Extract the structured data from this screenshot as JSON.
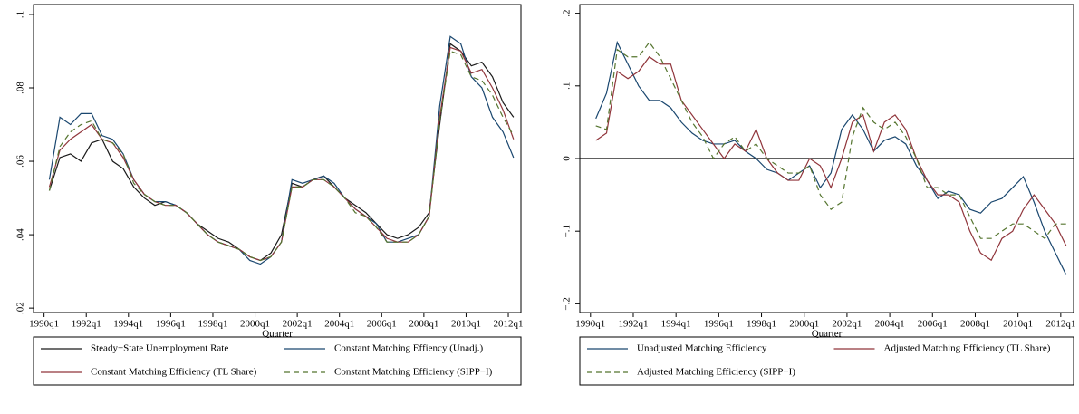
{
  "chart_data": [
    {
      "type": "line",
      "xlabel": "Quarter",
      "x": [
        1990.25,
        1990.75,
        1991.25,
        1991.75,
        1992.25,
        1992.75,
        1993.25,
        1993.75,
        1994.25,
        1994.75,
        1995.25,
        1995.75,
        1996.25,
        1996.75,
        1997.25,
        1997.75,
        1998.25,
        1998.75,
        1999.25,
        1999.75,
        2000.25,
        2000.75,
        2001.25,
        2001.75,
        2002.25,
        2002.75,
        2003.25,
        2003.75,
        2004.25,
        2004.75,
        2005.25,
        2005.75,
        2006.25,
        2006.75,
        2007.25,
        2007.75,
        2008.25,
        2008.75,
        2009.25,
        2009.75,
        2010.25,
        2010.75,
        2011.25,
        2011.75,
        2012.25
      ],
      "xlim": [
        1989.5,
        2012.6
      ],
      "xticks": [
        {
          "value": 1990,
          "label": "1990q1"
        },
        {
          "value": 1992,
          "label": "1992q1"
        },
        {
          "value": 1994,
          "label": "1994q1"
        },
        {
          "value": 1996,
          "label": "1996q1"
        },
        {
          "value": 1998,
          "label": "1998q1"
        },
        {
          "value": 2000,
          "label": "2000q1"
        },
        {
          "value": 2002,
          "label": "2002q1"
        },
        {
          "value": 2004,
          "label": "2004q1"
        },
        {
          "value": 2006,
          "label": "2006q1"
        },
        {
          "value": 2008,
          "label": "2008q1"
        },
        {
          "value": 2010,
          "label": "2010q1"
        },
        {
          "value": 2012,
          "label": "2012q1"
        }
      ],
      "ylim": [
        0.0188,
        0.1027
      ],
      "yticks": [
        {
          "value": 0.02,
          "label": ".02"
        },
        {
          "value": 0.04,
          "label": ".04"
        },
        {
          "value": 0.06,
          "label": ".06"
        },
        {
          "value": 0.08,
          "label": ".08"
        },
        {
          "value": 0.1,
          "label": ".1"
        }
      ],
      "series": [
        {
          "name": "Steady−State Unemployment Rate",
          "color": "#1a1a1a",
          "style": "solid",
          "values": [
            0.052,
            0.061,
            0.062,
            0.06,
            0.065,
            0.066,
            0.06,
            0.058,
            0.053,
            0.05,
            0.048,
            0.049,
            0.048,
            0.046,
            0.043,
            0.041,
            0.039,
            0.038,
            0.036,
            0.034,
            0.033,
            0.035,
            0.04,
            0.054,
            0.053,
            0.055,
            0.056,
            0.053,
            0.05,
            0.048,
            0.046,
            0.043,
            0.04,
            0.039,
            0.04,
            0.042,
            0.046,
            0.07,
            0.092,
            0.09,
            0.086,
            0.087,
            0.083,
            0.076,
            0.072
          ]
        },
        {
          "name": "Constant Matching Effiency (Unadj.)",
          "color": "#1a476f",
          "style": "solid",
          "values": [
            0.055,
            0.072,
            0.07,
            0.073,
            0.073,
            0.067,
            0.066,
            0.062,
            0.055,
            0.051,
            0.049,
            0.049,
            0.048,
            0.046,
            0.043,
            0.04,
            0.038,
            0.037,
            0.036,
            0.033,
            0.032,
            0.034,
            0.038,
            0.055,
            0.054,
            0.055,
            0.056,
            0.054,
            0.05,
            0.047,
            0.045,
            0.043,
            0.038,
            0.038,
            0.039,
            0.04,
            0.045,
            0.075,
            0.094,
            0.092,
            0.083,
            0.08,
            0.072,
            0.068,
            0.061
          ]
        },
        {
          "name": "Constant Matching Efficiency (TL Share)",
          "color": "#90353b",
          "style": "solid",
          "values": [
            0.053,
            0.063,
            0.066,
            0.068,
            0.07,
            0.066,
            0.065,
            0.061,
            0.055,
            0.051,
            0.049,
            0.048,
            0.048,
            0.046,
            0.043,
            0.04,
            0.038,
            0.037,
            0.036,
            0.034,
            0.033,
            0.034,
            0.038,
            0.053,
            0.053,
            0.055,
            0.055,
            0.053,
            0.05,
            0.047,
            0.045,
            0.042,
            0.039,
            0.038,
            0.038,
            0.04,
            0.045,
            0.072,
            0.091,
            0.09,
            0.084,
            0.085,
            0.08,
            0.074,
            0.066
          ]
        },
        {
          "name": "Constant Matching Efficiency (SIPP−I)",
          "color": "#55752f",
          "style": "dashed",
          "values": [
            0.052,
            0.064,
            0.068,
            0.07,
            0.071,
            0.066,
            0.065,
            0.062,
            0.054,
            0.051,
            0.049,
            0.048,
            0.048,
            0.046,
            0.043,
            0.04,
            0.038,
            0.037,
            0.036,
            0.034,
            0.033,
            0.034,
            0.038,
            0.053,
            0.053,
            0.055,
            0.055,
            0.053,
            0.05,
            0.046,
            0.045,
            0.042,
            0.038,
            0.038,
            0.038,
            0.04,
            0.045,
            0.071,
            0.09,
            0.089,
            0.083,
            0.082,
            0.078,
            0.072,
            0.067
          ]
        }
      ]
    },
    {
      "type": "line",
      "xlabel": "Quarter",
      "x": [
        1990.25,
        1990.75,
        1991.25,
        1991.75,
        1992.25,
        1992.75,
        1993.25,
        1993.75,
        1994.25,
        1994.75,
        1995.25,
        1995.75,
        1996.25,
        1996.75,
        1997.25,
        1997.75,
        1998.25,
        1998.75,
        1999.25,
        1999.75,
        2000.25,
        2000.75,
        2001.25,
        2001.75,
        2002.25,
        2002.75,
        2003.25,
        2003.75,
        2004.25,
        2004.75,
        2005.25,
        2005.75,
        2006.25,
        2006.75,
        2007.25,
        2007.75,
        2008.25,
        2008.75,
        2009.25,
        2009.75,
        2010.25,
        2010.75,
        2011.25,
        2011.75,
        2012.25
      ],
      "xlim": [
        1989.5,
        2012.6
      ],
      "xticks": [
        {
          "value": 1990,
          "label": "1990q1"
        },
        {
          "value": 1992,
          "label": "1992q1"
        },
        {
          "value": 1994,
          "label": "1994q1"
        },
        {
          "value": 1996,
          "label": "1996q1"
        },
        {
          "value": 1998,
          "label": "1998q1"
        },
        {
          "value": 2000,
          "label": "2000q1"
        },
        {
          "value": 2002,
          "label": "2002q1"
        },
        {
          "value": 2004,
          "label": "2004q1"
        },
        {
          "value": 2006,
          "label": "2006q1"
        },
        {
          "value": 2008,
          "label": "2008q1"
        },
        {
          "value": 2010,
          "label": "2010q1"
        },
        {
          "value": 2012,
          "label": "2012q1"
        }
      ],
      "ylim": [
        -0.212,
        0.212
      ],
      "yticks": [
        {
          "value": -0.2,
          "label": "−.2"
        },
        {
          "value": -0.1,
          "label": "−.1"
        },
        0,
        {
          "value": 0.1,
          "label": ".1"
        },
        {
          "value": 0.2,
          "label": ".2"
        }
      ],
      "hline": 0,
      "series": [
        {
          "name": "Unadjusted Matching Efficiency",
          "color": "#1a476f",
          "style": "solid",
          "values": [
            0.055,
            0.09,
            0.16,
            0.13,
            0.1,
            0.08,
            0.08,
            0.07,
            0.05,
            0.035,
            0.025,
            0.02,
            0.02,
            0.025,
            0.01,
            0.0,
            -0.015,
            -0.02,
            -0.03,
            -0.02,
            -0.01,
            -0.04,
            -0.02,
            0.04,
            0.06,
            0.04,
            0.01,
            0.025,
            0.03,
            0.02,
            -0.01,
            -0.03,
            -0.055,
            -0.045,
            -0.05,
            -0.07,
            -0.075,
            -0.06,
            -0.055,
            -0.04,
            -0.025,
            -0.06,
            -0.1,
            -0.13,
            -0.16
          ]
        },
        {
          "name": "Adjusted Matching Efficiency (TL Share)",
          "color": "#90353b",
          "style": "solid",
          "values": [
            0.025,
            0.035,
            0.12,
            0.11,
            0.12,
            0.14,
            0.13,
            0.13,
            0.08,
            0.06,
            0.04,
            0.02,
            0.0,
            0.02,
            0.01,
            0.04,
            0.0,
            -0.02,
            -0.03,
            -0.03,
            0.0,
            -0.01,
            -0.04,
            0.0,
            0.05,
            0.06,
            0.01,
            0.05,
            0.06,
            0.04,
            0.0,
            -0.03,
            -0.05,
            -0.05,
            -0.06,
            -0.1,
            -0.13,
            -0.14,
            -0.11,
            -0.1,
            -0.07,
            -0.05,
            -0.07,
            -0.09,
            -0.12
          ]
        },
        {
          "name": "Adjusted Matching Efficiency (SIPP−I)",
          "color": "#55752f",
          "style": "dashed",
          "values": [
            0.045,
            0.04,
            0.15,
            0.14,
            0.14,
            0.16,
            0.14,
            0.11,
            0.08,
            0.05,
            0.03,
            0.0,
            0.02,
            0.03,
            0.01,
            0.02,
            0.0,
            -0.01,
            -0.02,
            -0.02,
            -0.01,
            -0.05,
            -0.07,
            -0.06,
            0.03,
            0.07,
            0.05,
            0.04,
            0.05,
            0.03,
            0.0,
            -0.04,
            -0.04,
            -0.05,
            -0.05,
            -0.08,
            -0.11,
            -0.11,
            -0.1,
            -0.09,
            -0.09,
            -0.1,
            -0.11,
            -0.09,
            -0.09
          ]
        }
      ]
    }
  ]
}
